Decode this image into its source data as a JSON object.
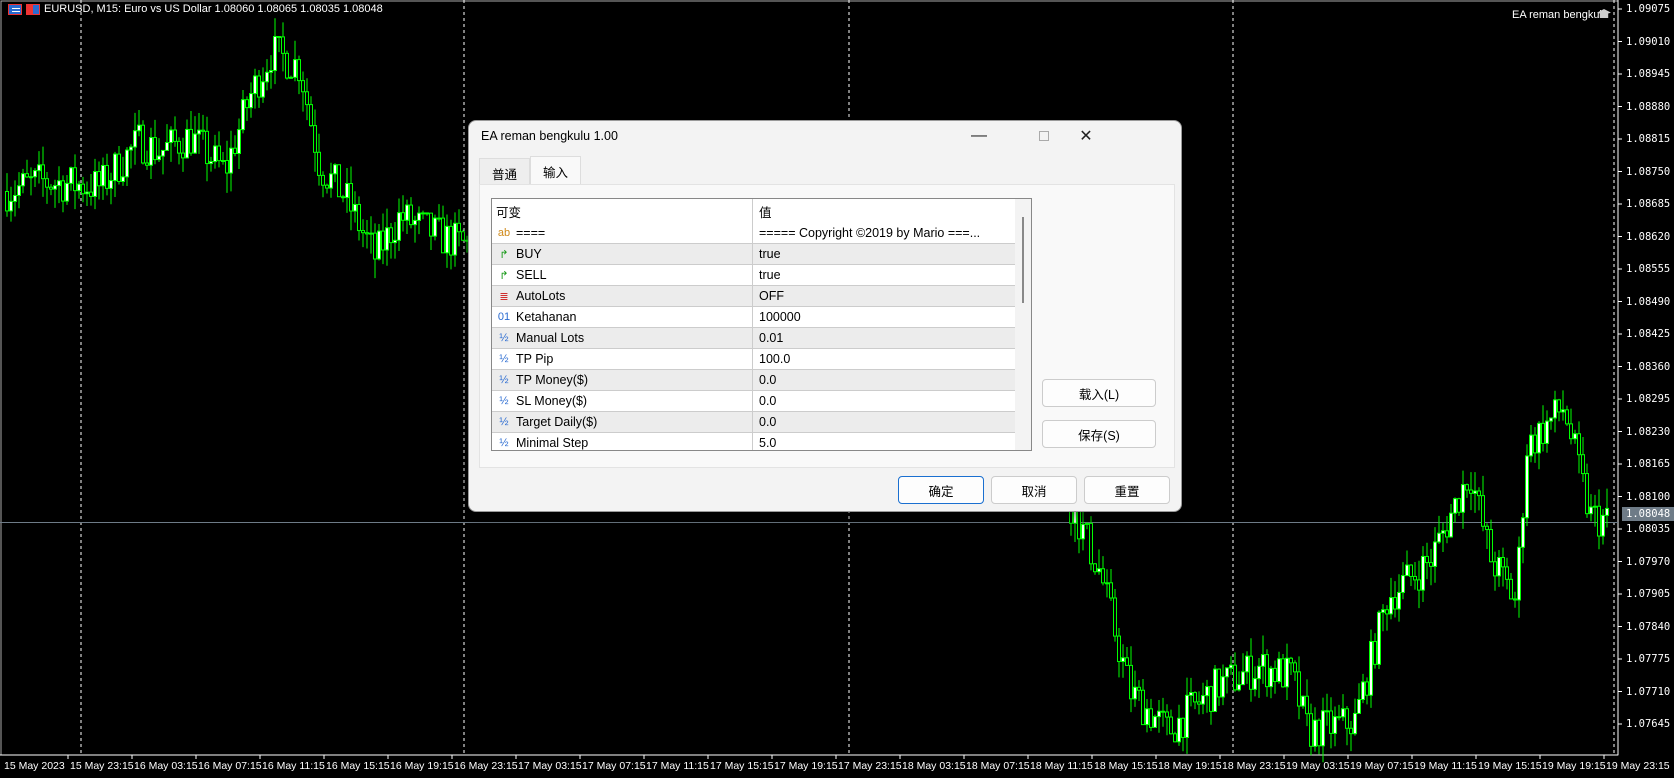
{
  "chart": {
    "symbol_header": "EURUSD, M15:  Euro vs US Dollar  1.08060 1.08065 1.08035 1.08048",
    "ea_label": "EA reman bengkulu",
    "current_price": "1.08048",
    "bull_color": "#00ff00",
    "price_labels": [
      "1.09075",
      "1.09010",
      "1.08945",
      "1.08880",
      "1.08815",
      "1.08750",
      "1.08685",
      "1.08620",
      "1.08555",
      "1.08490",
      "1.08425",
      "1.08360",
      "1.08295",
      "1.08230",
      "1.08165",
      "1.08100",
      "1.08035",
      "1.07970",
      "1.07905",
      "1.07840",
      "1.07775",
      "1.07710",
      "1.07645"
    ],
    "time_labels": [
      "15 May 2023",
      "15 May 23:15",
      "16 May 03:15",
      "16 May 07:15",
      "16 May 11:15",
      "16 May 15:15",
      "16 May 19:15",
      "16 May 23:15",
      "17 May 03:15",
      "17 May 07:15",
      "17 May 11:15",
      "17 May 15:15",
      "17 May 19:15",
      "17 May 23:15",
      "18 May 03:15",
      "18 May 07:15",
      "18 May 11:15",
      "18 May 15:15",
      "18 May 19:15",
      "18 May 23:15",
      "19 May 03:15",
      "19 May 07:15",
      "19 May 11:15",
      "19 May 15:15",
      "19 May 19:15",
      "19 May 23:15"
    ]
  },
  "dialog": {
    "title": "EA reman bengkulu 1.00",
    "tabs": [
      {
        "label": "普通"
      },
      {
        "label": "输入"
      }
    ],
    "columns": {
      "variable": "可变",
      "value": "值"
    },
    "params": [
      {
        "icon": "string-icon",
        "glyph": "ab",
        "color": "#d08a1a",
        "name": "====",
        "value": "===== Copyright ©2019 by Mario ===..."
      },
      {
        "icon": "bool-icon",
        "glyph": "↱",
        "color": "#1a9a1a",
        "name": "BUY",
        "value": "true"
      },
      {
        "icon": "bool-icon",
        "glyph": "↱",
        "color": "#1a9a1a",
        "name": "SELL",
        "value": "true"
      },
      {
        "icon": "enum-icon",
        "glyph": "≣",
        "color": "#d03030",
        "name": "AutoLots",
        "value": "OFF"
      },
      {
        "icon": "int-icon",
        "glyph": "01",
        "color": "#2a6bd1",
        "name": "Ketahanan",
        "value": "100000"
      },
      {
        "icon": "double-icon",
        "glyph": "½",
        "color": "#2a6bd1",
        "name": "Manual Lots",
        "value": "0.01"
      },
      {
        "icon": "double-icon",
        "glyph": "½",
        "color": "#2a6bd1",
        "name": "TP Pip",
        "value": "100.0"
      },
      {
        "icon": "double-icon",
        "glyph": "½",
        "color": "#2a6bd1",
        "name": "TP Money($)",
        "value": "0.0"
      },
      {
        "icon": "double-icon",
        "glyph": "½",
        "color": "#2a6bd1",
        "name": "SL Money($)",
        "value": "0.0"
      },
      {
        "icon": "double-icon",
        "glyph": "½",
        "color": "#2a6bd1",
        "name": "Target Daily($)",
        "value": "0.0"
      },
      {
        "icon": "double-icon",
        "glyph": "½",
        "color": "#2a6bd1",
        "name": "Minimal Step",
        "value": "5.0"
      }
    ],
    "buttons": {
      "load": "载入(L)",
      "save": "保存(S)",
      "ok": "确定",
      "cancel": "取消",
      "reset": "重置"
    }
  }
}
